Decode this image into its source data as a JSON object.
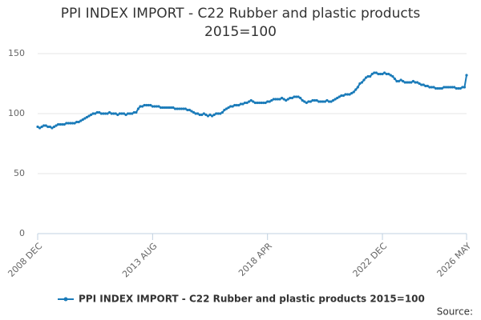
{
  "chart_data": {
    "type": "line",
    "title": "PPI INDEX IMPORT - C22 Rubber and plastic products 2015=100",
    "source": "Source:",
    "categories": [
      "2008 DEC",
      null,
      null,
      null,
      null,
      null,
      null,
      null,
      null,
      null,
      null,
      null,
      null,
      null,
      null,
      null,
      null,
      null,
      null,
      null,
      null,
      null,
      null,
      null,
      null,
      null,
      null,
      null,
      null,
      null,
      null,
      null,
      null,
      null,
      null,
      null,
      null,
      null,
      null,
      null,
      null,
      null,
      null,
      null,
      null,
      null,
      null,
      null,
      null,
      null,
      null,
      null,
      null,
      null,
      null,
      null,
      "2013 AUG",
      null,
      null,
      null,
      null,
      null,
      null,
      null,
      null,
      null,
      null,
      null,
      null,
      null,
      null,
      null,
      null,
      null,
      null,
      null,
      null,
      null,
      null,
      null,
      null,
      null,
      null,
      null,
      null,
      null,
      null,
      null,
      null,
      null,
      null,
      null,
      null,
      null,
      null,
      null,
      null,
      null,
      null,
      null,
      null,
      null,
      null,
      null,
      null,
      null,
      null,
      null,
      null,
      null,
      null,
      null,
      "2018 APR",
      null,
      null,
      null,
      null,
      null,
      null,
      null,
      null,
      null,
      null,
      null,
      null,
      null,
      null,
      null,
      null,
      null,
      null,
      null,
      null,
      null,
      null,
      null,
      null,
      null,
      null,
      null,
      null,
      null,
      null,
      null,
      null,
      null,
      null,
      null,
      null,
      null,
      null,
      null,
      null,
      null,
      null,
      null,
      null,
      null,
      null,
      null,
      null,
      null,
      null,
      null,
      null,
      null,
      null,
      null,
      "2022 DEC",
      null,
      null,
      null,
      null,
      null,
      null,
      null,
      null,
      null,
      null,
      null,
      null,
      null,
      null,
      null,
      null,
      null,
      null,
      null,
      null,
      null,
      null,
      null,
      null,
      null,
      null,
      null,
      null,
      null,
      null,
      null,
      null,
      null,
      null,
      null,
      null,
      null,
      null,
      null,
      null,
      "2026 MAY"
    ],
    "series": [
      {
        "name": "PPI INDEX IMPORT - C22 Rubber and plastic products 2015=100",
        "color": "#1a7bb9",
        "values": [
          89,
          88,
          89,
          90,
          90,
          89,
          89,
          88,
          89,
          90,
          91,
          91,
          91,
          91,
          92,
          92,
          92,
          92,
          92,
          93,
          93,
          94,
          95,
          96,
          97,
          98,
          99,
          100,
          100,
          101,
          101,
          100,
          100,
          100,
          100,
          101,
          100,
          100,
          100,
          99,
          100,
          100,
          100,
          99,
          100,
          100,
          100,
          101,
          101,
          104,
          106,
          106,
          107,
          107,
          107,
          107,
          106,
          106,
          106,
          106,
          105,
          105,
          105,
          105,
          105,
          105,
          105,
          104,
          104,
          104,
          104,
          104,
          104,
          103,
          103,
          102,
          101,
          100,
          100,
          99,
          99,
          100,
          99,
          98,
          99,
          98,
          99,
          100,
          100,
          100,
          101,
          103,
          104,
          105,
          106,
          106,
          107,
          107,
          107,
          108,
          108,
          109,
          109,
          110,
          111,
          110,
          109,
          109,
          109,
          109,
          109,
          109,
          110,
          110,
          111,
          112,
          112,
          112,
          112,
          113,
          112,
          111,
          112,
          113,
          113,
          114,
          114,
          114,
          113,
          111,
          110,
          109,
          110,
          110,
          111,
          111,
          111,
          110,
          110,
          110,
          110,
          111,
          110,
          110,
          111,
          112,
          113,
          114,
          115,
          115,
          116,
          116,
          116,
          117,
          118,
          120,
          122,
          125,
          126,
          128,
          130,
          131,
          131,
          133,
          134,
          134,
          133,
          133,
          133,
          134,
          133,
          133,
          132,
          131,
          129,
          127,
          127,
          128,
          127,
          126,
          126,
          126,
          126,
          127,
          126,
          126,
          125,
          124,
          124,
          123,
          123,
          122,
          122,
          122,
          121,
          121,
          121,
          121,
          122,
          122,
          122,
          122,
          122,
          122,
          121,
          121,
          121,
          122,
          122,
          132
        ]
      }
    ],
    "ylim": [
      0,
      150
    ],
    "yticks": [
      0,
      50,
      100,
      150
    ],
    "grid": true
  }
}
